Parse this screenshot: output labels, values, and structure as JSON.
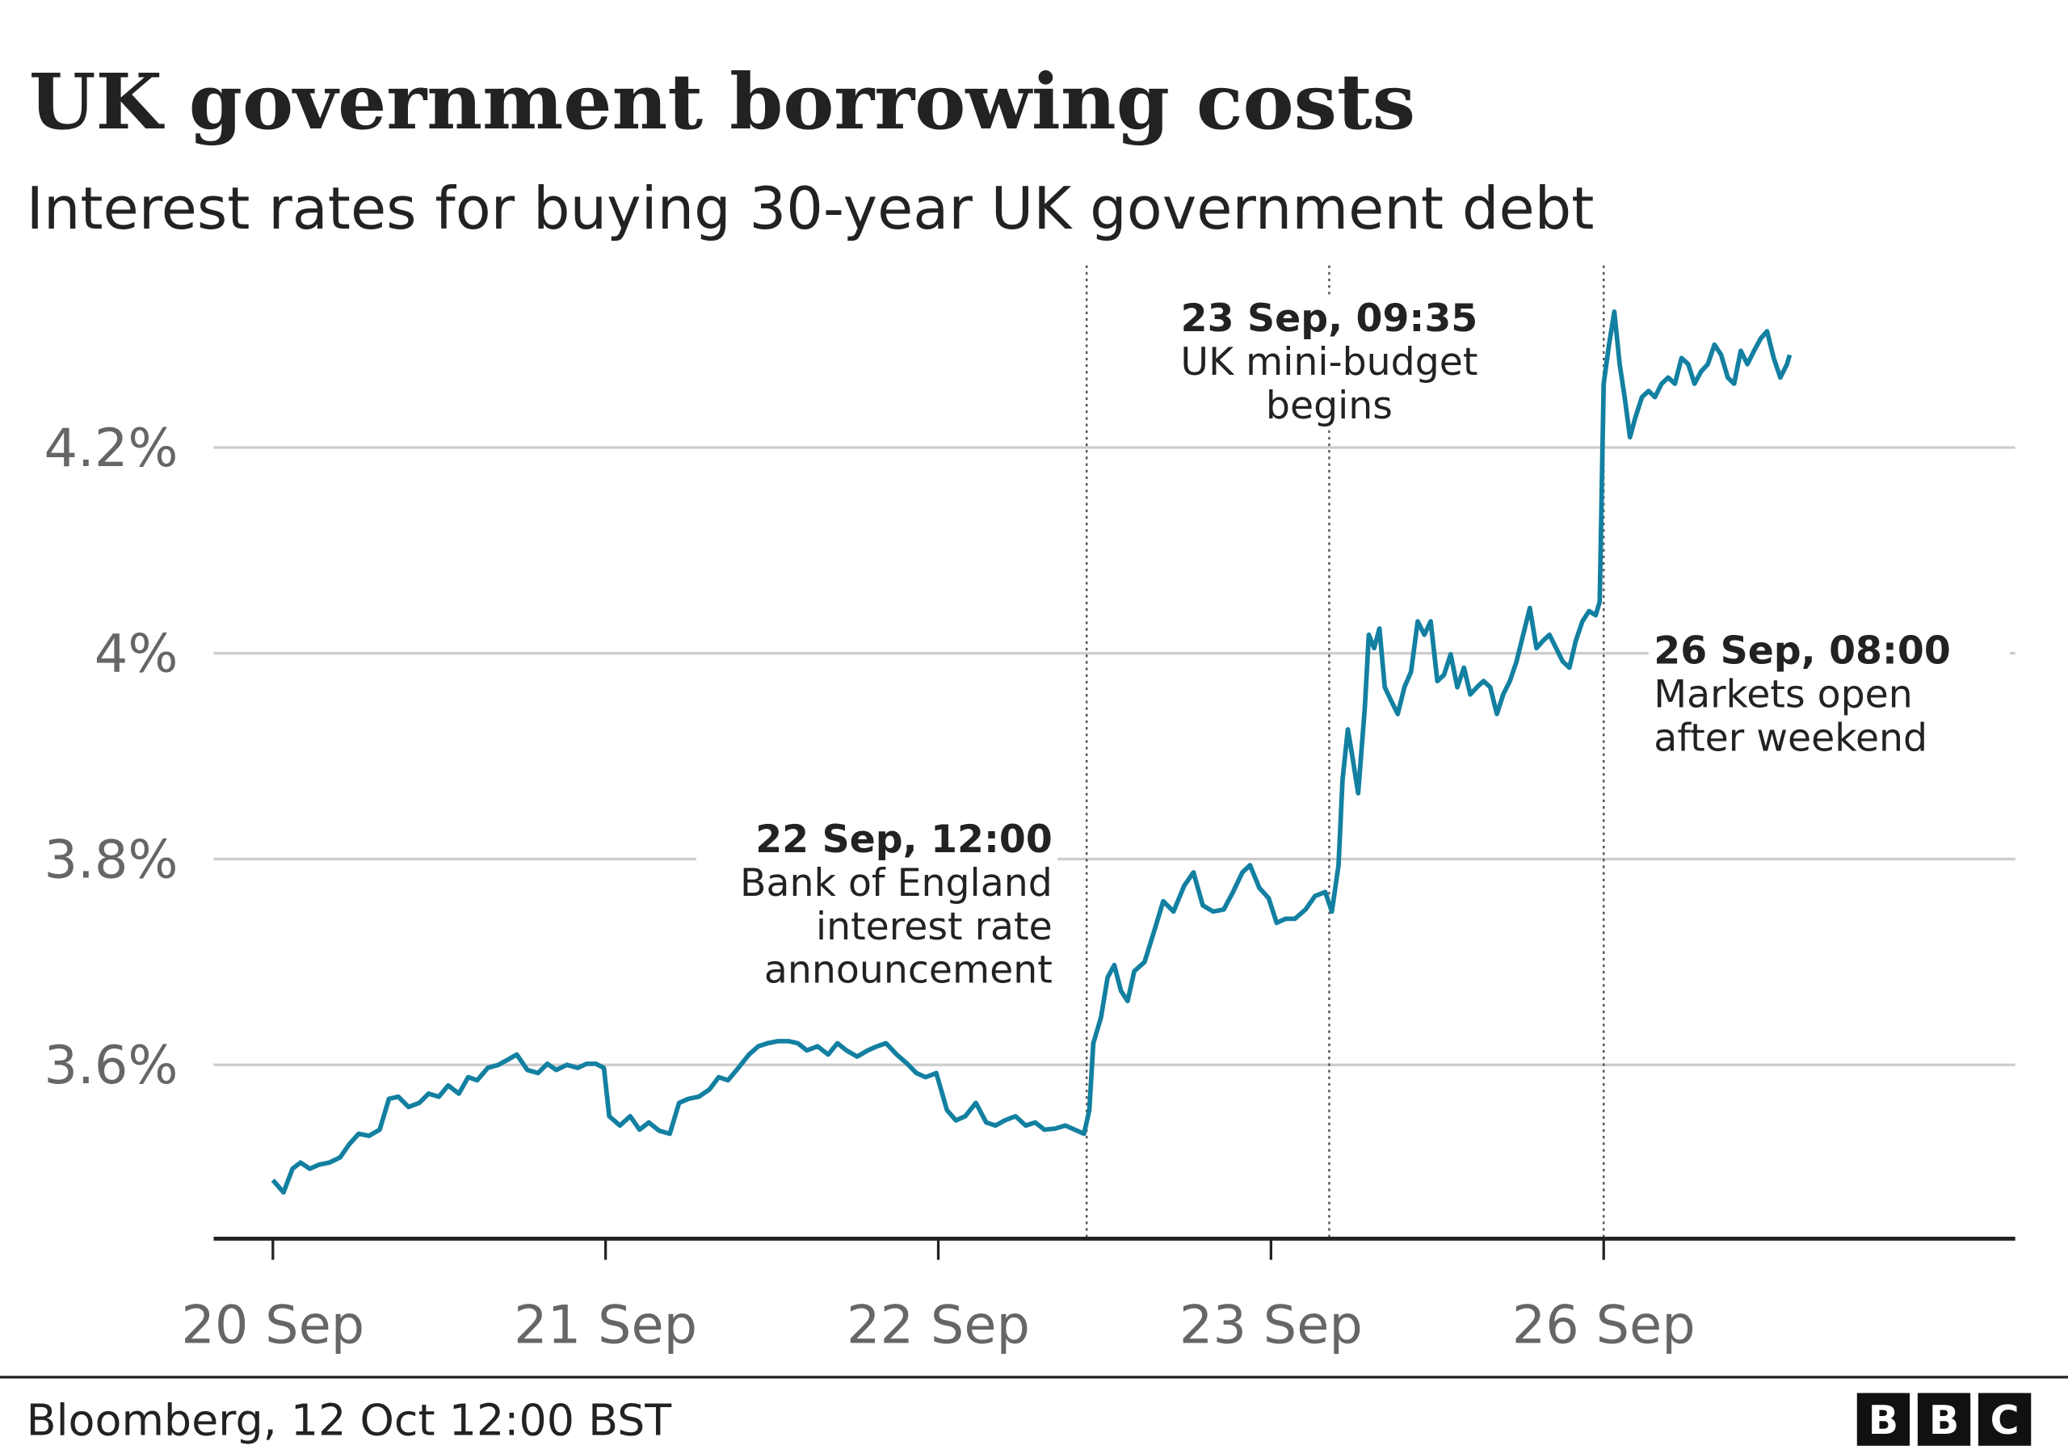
{
  "chart_data": {
    "type": "line",
    "title": "UK government borrowing costs",
    "subtitle": "Interest rates for buying 30-year UK government debt",
    "source": "Bloomberg, 12 Oct 12:00 BST",
    "logo": [
      "B",
      "B",
      "C"
    ],
    "xlim": [
      -0.178,
      5.237
    ],
    "xticks": [
      {
        "value": 0,
        "label": "20 Sep"
      },
      {
        "value": 1,
        "label": "21 Sep"
      },
      {
        "value": 2,
        "label": "22 Sep"
      },
      {
        "value": 3,
        "label": "23 Sep"
      },
      {
        "value": 4,
        "label": "26 Sep"
      }
    ],
    "ylim": [
      3.431,
      4.377
    ],
    "yticks": [
      {
        "value": 3.6,
        "label": "3.6%"
      },
      {
        "value": 3.8,
        "label": "3.8%"
      },
      {
        "value": 4,
        "label": "4%"
      },
      {
        "value": 4.2,
        "label": "4.2%"
      }
    ],
    "grid": true,
    "annotations": [
      {
        "x": 2.446,
        "title": "22 Sep, 12:00",
        "text": [
          "Bank of England",
          "interest rate",
          "announcement"
        ]
      },
      {
        "x": 3.175,
        "title": "23 Sep, 09:35",
        "text": [
          "UK mini-budget",
          "begins"
        ]
      },
      {
        "x": 4.0,
        "title": "26 Sep, 08:00",
        "text": [
          "Markets open",
          "after weekend"
        ]
      }
    ],
    "x": [
      0,
      0.032,
      0.059,
      0.083,
      0.111,
      0.139,
      0.17,
      0.202,
      0.23,
      0.258,
      0.289,
      0.321,
      0.349,
      0.377,
      0.408,
      0.44,
      0.468,
      0.499,
      0.527,
      0.559,
      0.587,
      0.614,
      0.646,
      0.678,
      0.706,
      0.733,
      0.765,
      0.797,
      0.825,
      0.852,
      0.884,
      0.916,
      0.943,
      0.971,
      0.995,
      1.011,
      1.043,
      1.074,
      1.102,
      1.13,
      1.161,
      1.193,
      1.221,
      1.249,
      1.28,
      1.312,
      1.34,
      1.368,
      1.399,
      1.431,
      1.459,
      1.487,
      1.518,
      1.55,
      1.578,
      1.605,
      1.637,
      1.669,
      1.697,
      1.724,
      1.756,
      1.788,
      1.816,
      1.843,
      1.875,
      1.907,
      1.934,
      1.962,
      1.994,
      2.026,
      2.053,
      2.081,
      2.113,
      2.144,
      2.172,
      2.2,
      2.232,
      2.263,
      2.291,
      2.319,
      2.351,
      2.382,
      2.41,
      2.438,
      2.454,
      2.466,
      2.489,
      2.509,
      2.529,
      2.549,
      2.569,
      2.589,
      2.62,
      2.648,
      2.676,
      2.707,
      2.739,
      2.767,
      2.795,
      2.826,
      2.858,
      2.886,
      2.914,
      2.937,
      2.965,
      2.993,
      3.017,
      3.044,
      3.072,
      3.104,
      3.132,
      3.163,
      3.183,
      3.203,
      3.215,
      3.231,
      3.243,
      3.262,
      3.282,
      3.294,
      3.31,
      3.326,
      3.342,
      3.361,
      3.381,
      3.401,
      3.421,
      3.441,
      3.461,
      3.48,
      3.5,
      3.52,
      3.54,
      3.56,
      3.58,
      3.599,
      3.619,
      3.639,
      3.659,
      3.679,
      3.698,
      3.718,
      3.738,
      3.758,
      3.778,
      3.798,
      3.817,
      3.837,
      3.857,
      3.877,
      3.897,
      3.916,
      3.936,
      3.956,
      3.976,
      3.988,
      4.0,
      4.016,
      4.032,
      4.048,
      4.063,
      4.079,
      4.095,
      4.115,
      4.135,
      4.154,
      4.174,
      4.194,
      4.214,
      4.234,
      4.254,
      4.273,
      4.293,
      4.313,
      4.333,
      4.353,
      4.373,
      4.392,
      4.412,
      4.432,
      4.452,
      4.472,
      4.491,
      4.511,
      4.531,
      4.551,
      4.559
    ],
    "series": [
      {
        "color": "#1380a1",
        "values": [
          3.488,
          3.476,
          3.499,
          3.505,
          3.499,
          3.503,
          3.505,
          3.51,
          3.523,
          3.533,
          3.531,
          3.537,
          3.567,
          3.569,
          3.559,
          3.563,
          3.572,
          3.569,
          3.58,
          3.572,
          3.588,
          3.585,
          3.597,
          3.6,
          3.605,
          3.61,
          3.595,
          3.592,
          3.601,
          3.595,
          3.6,
          3.597,
          3.601,
          3.601,
          3.597,
          3.55,
          3.541,
          3.55,
          3.537,
          3.544,
          3.536,
          3.533,
          3.563,
          3.567,
          3.569,
          3.576,
          3.588,
          3.585,
          3.597,
          3.61,
          3.618,
          3.621,
          3.623,
          3.623,
          3.621,
          3.614,
          3.618,
          3.61,
          3.621,
          3.614,
          3.608,
          3.614,
          3.618,
          3.621,
          3.61,
          3.601,
          3.592,
          3.588,
          3.592,
          3.556,
          3.546,
          3.55,
          3.563,
          3.544,
          3.541,
          3.546,
          3.55,
          3.541,
          3.544,
          3.537,
          3.538,
          3.541,
          3.537,
          3.533,
          3.556,
          3.621,
          3.646,
          3.685,
          3.697,
          3.672,
          3.662,
          3.691,
          3.7,
          3.729,
          3.759,
          3.749,
          3.774,
          3.787,
          3.755,
          3.749,
          3.751,
          3.768,
          3.787,
          3.794,
          3.772,
          3.762,
          3.738,
          3.742,
          3.742,
          3.751,
          3.764,
          3.768,
          3.749,
          3.794,
          3.877,
          3.926,
          3.903,
          3.864,
          3.947,
          4.018,
          4.005,
          4.024,
          3.967,
          3.954,
          3.941,
          3.967,
          3.982,
          4.031,
          4.018,
          4.031,
          3.973,
          3.979,
          3.999,
          3.967,
          3.986,
          3.96,
          3.967,
          3.973,
          3.967,
          3.941,
          3.96,
          3.973,
          3.992,
          4.018,
          4.044,
          4.005,
          4.012,
          4.018,
          4.005,
          3.992,
          3.986,
          4.012,
          4.031,
          4.041,
          4.037,
          4.05,
          4.262,
          4.3,
          4.332,
          4.281,
          4.249,
          4.21,
          4.229,
          4.249,
          4.255,
          4.249,
          4.262,
          4.268,
          4.262,
          4.287,
          4.281,
          4.262,
          4.274,
          4.281,
          4.3,
          4.29,
          4.268,
          4.262,
          4.294,
          4.281,
          4.294,
          4.306,
          4.313,
          4.287,
          4.268,
          4.281,
          4.29
        ]
      }
    ]
  }
}
